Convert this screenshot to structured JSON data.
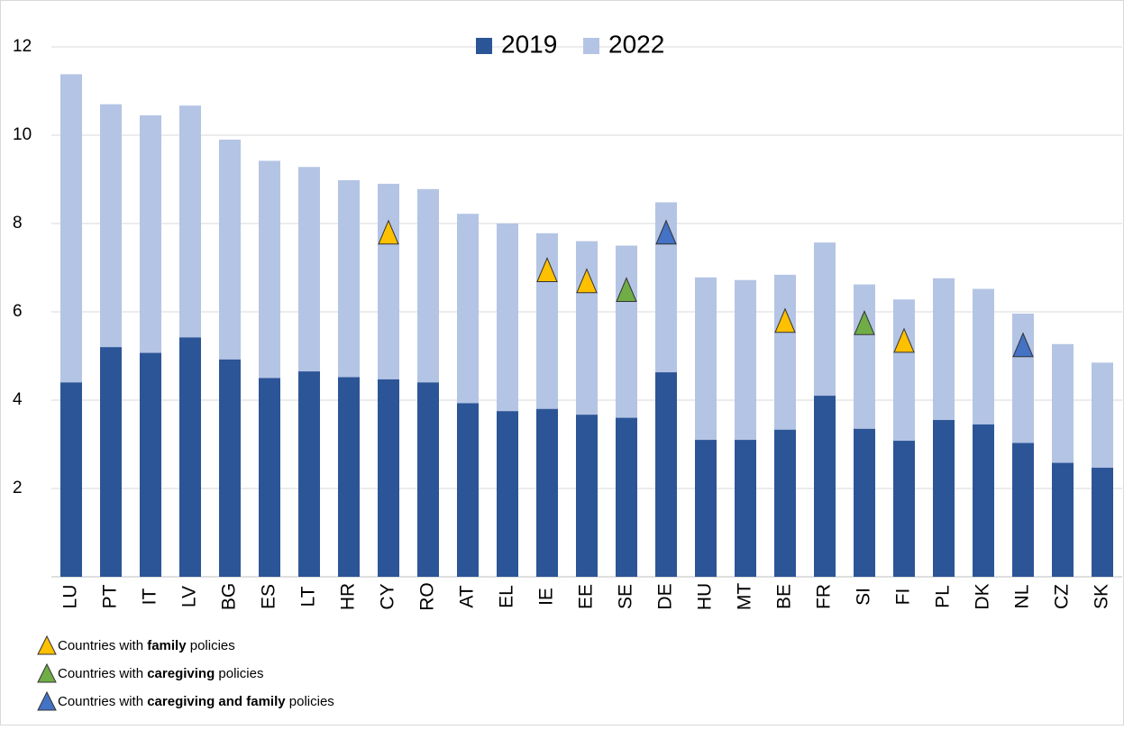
{
  "chart_data": {
    "type": "bar",
    "categories": [
      "LU",
      "PT",
      "IT",
      "LV",
      "BG",
      "ES",
      "LT",
      "HR",
      "CY",
      "RO",
      "AT",
      "EL",
      "IE",
      "EE",
      "SE",
      "DE",
      "HU",
      "MT",
      "BE",
      "FR",
      "SI",
      "FI",
      "PL",
      "DK",
      "NL",
      "CZ",
      "SK"
    ],
    "series": [
      {
        "name": "2022",
        "color": "#b4c4e4",
        "values": [
          11.38,
          10.7,
          10.45,
          10.67,
          9.9,
          9.42,
          9.28,
          8.98,
          8.9,
          8.78,
          8.22,
          8.0,
          7.78,
          7.6,
          7.5,
          8.48,
          6.78,
          6.72,
          6.84,
          7.57,
          6.62,
          6.28,
          6.76,
          6.52,
          5.96,
          5.27,
          4.85
        ]
      },
      {
        "name": "2019",
        "color": "#2c5597",
        "values": [
          4.4,
          5.2,
          5.07,
          5.42,
          4.92,
          4.5,
          4.65,
          4.52,
          4.47,
          4.4,
          3.93,
          3.75,
          3.8,
          3.67,
          3.6,
          4.63,
          3.1,
          3.1,
          3.33,
          4.1,
          3.35,
          3.08,
          3.55,
          3.45,
          3.03,
          2.58,
          2.47
        ]
      }
    ],
    "markers": [
      {
        "name_parts": [
          "Countries with ",
          "family",
          " policies"
        ],
        "color": "#ffc000",
        "values": [
          null,
          null,
          null,
          null,
          null,
          null,
          null,
          null,
          7.8,
          null,
          null,
          null,
          6.95,
          6.7,
          null,
          null,
          null,
          null,
          5.8,
          null,
          null,
          5.35,
          null,
          null,
          null,
          null,
          null
        ]
      },
      {
        "name_parts": [
          "Countries with ",
          "caregiving",
          " policies"
        ],
        "color": "#70ad47",
        "values": [
          null,
          null,
          null,
          null,
          null,
          null,
          null,
          null,
          null,
          null,
          null,
          null,
          null,
          null,
          6.5,
          null,
          null,
          null,
          null,
          null,
          5.75,
          null,
          null,
          null,
          null,
          null,
          null
        ]
      },
      {
        "name_parts": [
          "Countries with ",
          "caregiving and family",
          " policies"
        ],
        "color": "#4472c4",
        "values": [
          null,
          null,
          null,
          null,
          null,
          null,
          null,
          null,
          null,
          null,
          null,
          null,
          null,
          null,
          null,
          7.8,
          null,
          null,
          null,
          null,
          null,
          null,
          null,
          null,
          5.25,
          null,
          null
        ]
      }
    ],
    "ylim": [
      0,
      12
    ],
    "yticks": [
      2,
      4,
      6,
      8,
      10,
      12
    ],
    "grid": true
  }
}
